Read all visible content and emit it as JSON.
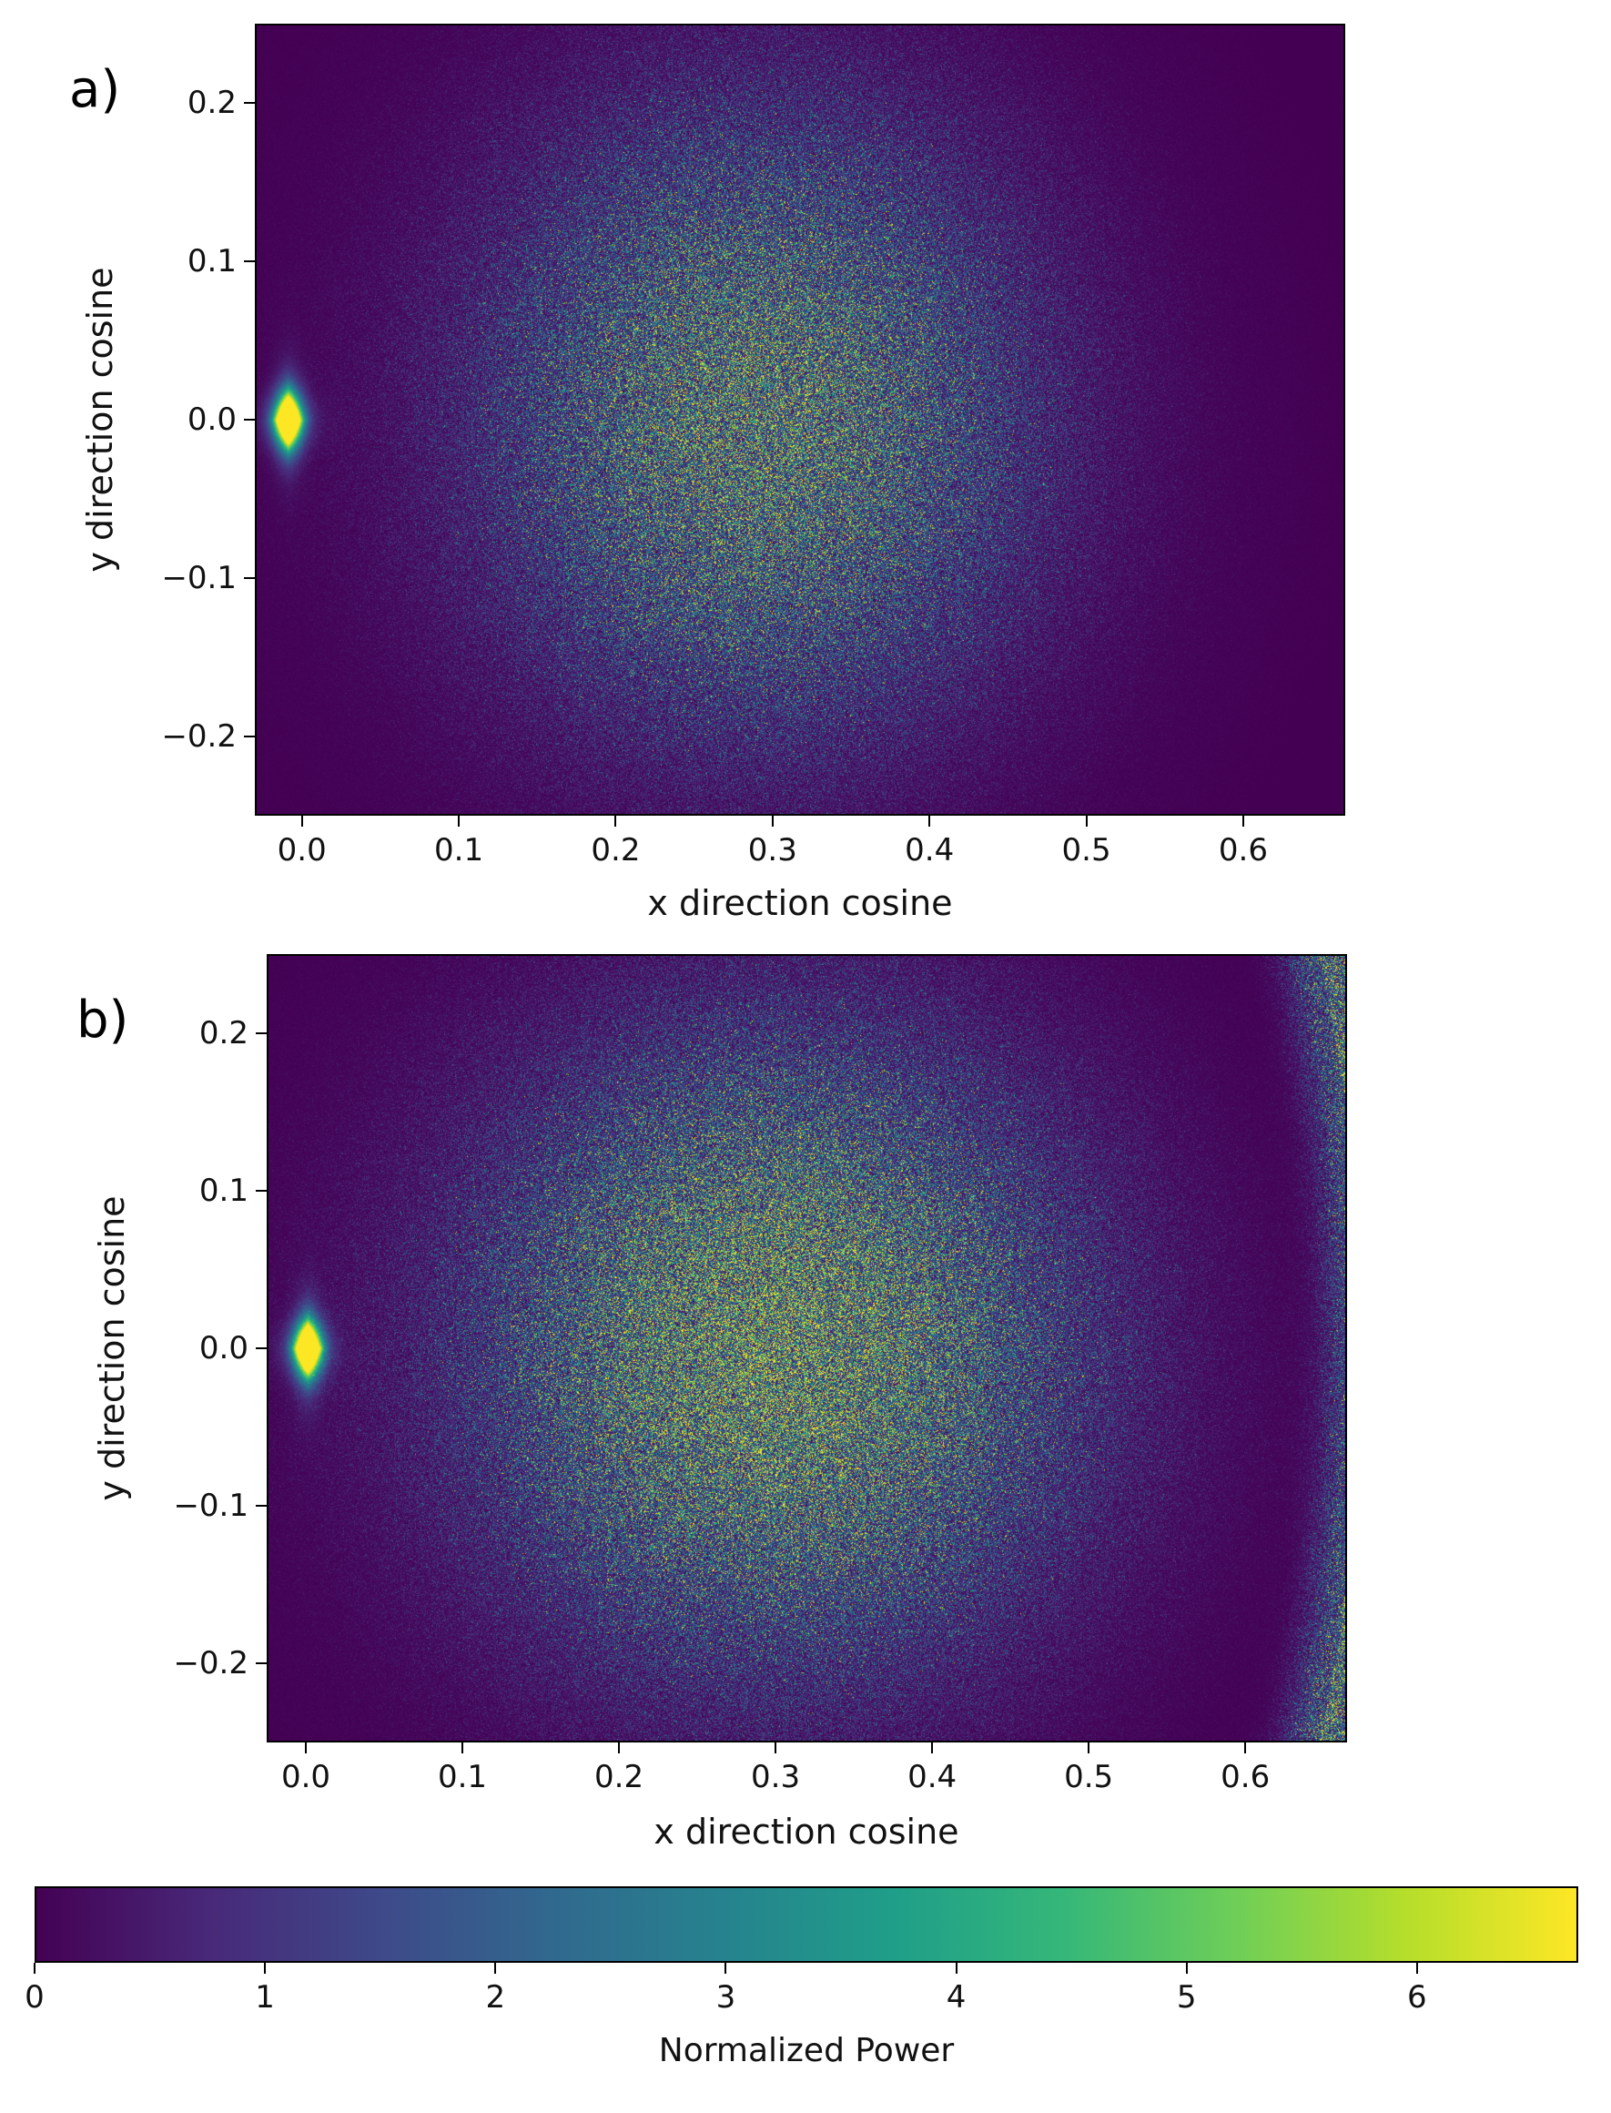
{
  "chart_data": [
    {
      "type": "heatmap",
      "panel_label": "a)",
      "xlabel": "x direction cosine",
      "ylabel": "y direction cosine",
      "xlim": [
        -0.03,
        0.665
      ],
      "ylim": [
        -0.25,
        0.25
      ],
      "xticks": [
        0.0,
        0.1,
        0.2,
        0.3,
        0.4,
        0.5,
        0.6
      ],
      "xtick_labels": [
        "0.0",
        "0.1",
        "0.2",
        "0.3",
        "0.4",
        "0.5",
        "0.6"
      ],
      "yticks": [
        0.2,
        0.1,
        0.0,
        -0.1,
        -0.2
      ],
      "ytick_labels": [
        "0.2",
        "0.1",
        "0.0",
        "−0.1",
        "−0.2"
      ],
      "colormap": "viridis",
      "features": {
        "main_lobe_center": [
          0.29,
          0.0
        ],
        "main_lobe_peak": 6.7,
        "specular_spot": [
          -0.01,
          0.0
        ],
        "right_edge_ring": false
      }
    },
    {
      "type": "heatmap",
      "panel_label": "b)",
      "xlabel": "x direction cosine",
      "ylabel": "y direction cosine",
      "xlim": [
        -0.025,
        0.665
      ],
      "ylim": [
        -0.25,
        0.25
      ],
      "xticks": [
        0.0,
        0.1,
        0.2,
        0.3,
        0.4,
        0.5,
        0.6
      ],
      "xtick_labels": [
        "0.0",
        "0.1",
        "0.2",
        "0.3",
        "0.4",
        "0.5",
        "0.6"
      ],
      "yticks": [
        0.2,
        0.1,
        0.0,
        -0.1,
        -0.2
      ],
      "ytick_labels": [
        "0.2",
        "0.1",
        "0.0",
        "−0.1",
        "−0.2"
      ],
      "colormap": "viridis",
      "features": {
        "main_lobe_center": [
          0.3,
          0.0
        ],
        "main_lobe_peak": 6.7,
        "specular_spot": [
          0.0,
          0.0
        ],
        "right_edge_ring": true
      }
    }
  ],
  "colorbar": {
    "label": "Normalized Power",
    "range": [
      0,
      6.7
    ],
    "ticks": [
      0,
      1,
      2,
      3,
      4,
      5,
      6
    ],
    "tick_labels": [
      "0",
      "1",
      "2",
      "3",
      "4",
      "5",
      "6"
    ],
    "colors": [
      "#440154",
      "#482878",
      "#3e4989",
      "#31688e",
      "#26828e",
      "#1f9e89",
      "#35b779",
      "#6ece58",
      "#b5de2b",
      "#fde725"
    ]
  }
}
